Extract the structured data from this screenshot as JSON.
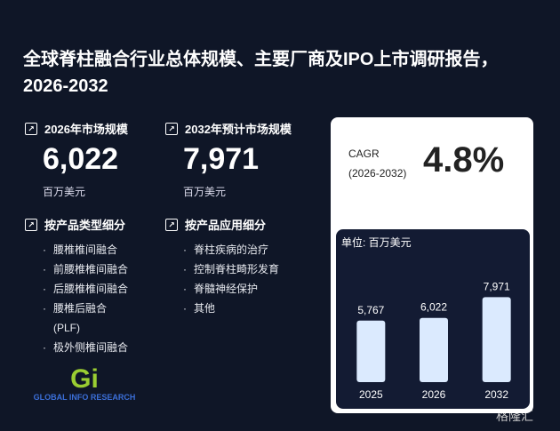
{
  "title": "全球脊柱融合行业总体规模、主要厂商及IPO上市调研报告，2026-2032",
  "stats": [
    {
      "label": "2026年市场规模",
      "value": "6,022",
      "unit": "百万美元"
    },
    {
      "label": "2032年预计市场规模",
      "value": "7,971",
      "unit": "百万美元"
    }
  ],
  "segments": [
    {
      "label": "按产品类型细分",
      "items": [
        "腰椎椎间融合",
        "前腰椎椎间融合",
        "后腰椎椎间融合",
        "腰椎后融合\n(PLF)",
        "极外侧椎间融合"
      ]
    },
    {
      "label": "按产品应用细分",
      "items": [
        "脊柱疾病的治疗",
        "控制脊柱畸形发育",
        "脊髓神经保护",
        "其他"
      ]
    }
  ],
  "cagr": {
    "label": "CAGR",
    "period": "(2026-2032)",
    "value": "4.8%"
  },
  "logo": "GLOBAL INFO RESEARCH",
  "watermark": "格隆汇",
  "chart_data": {
    "type": "bar",
    "unit_label": "单位: 百万美元",
    "categories": [
      "2025",
      "2026",
      "2032"
    ],
    "values": [
      5767,
      6022,
      7971
    ],
    "value_labels": [
      "5,767",
      "6,022",
      "7,971"
    ],
    "color": "#dbeafe",
    "ylim": [
      0,
      9000
    ]
  }
}
